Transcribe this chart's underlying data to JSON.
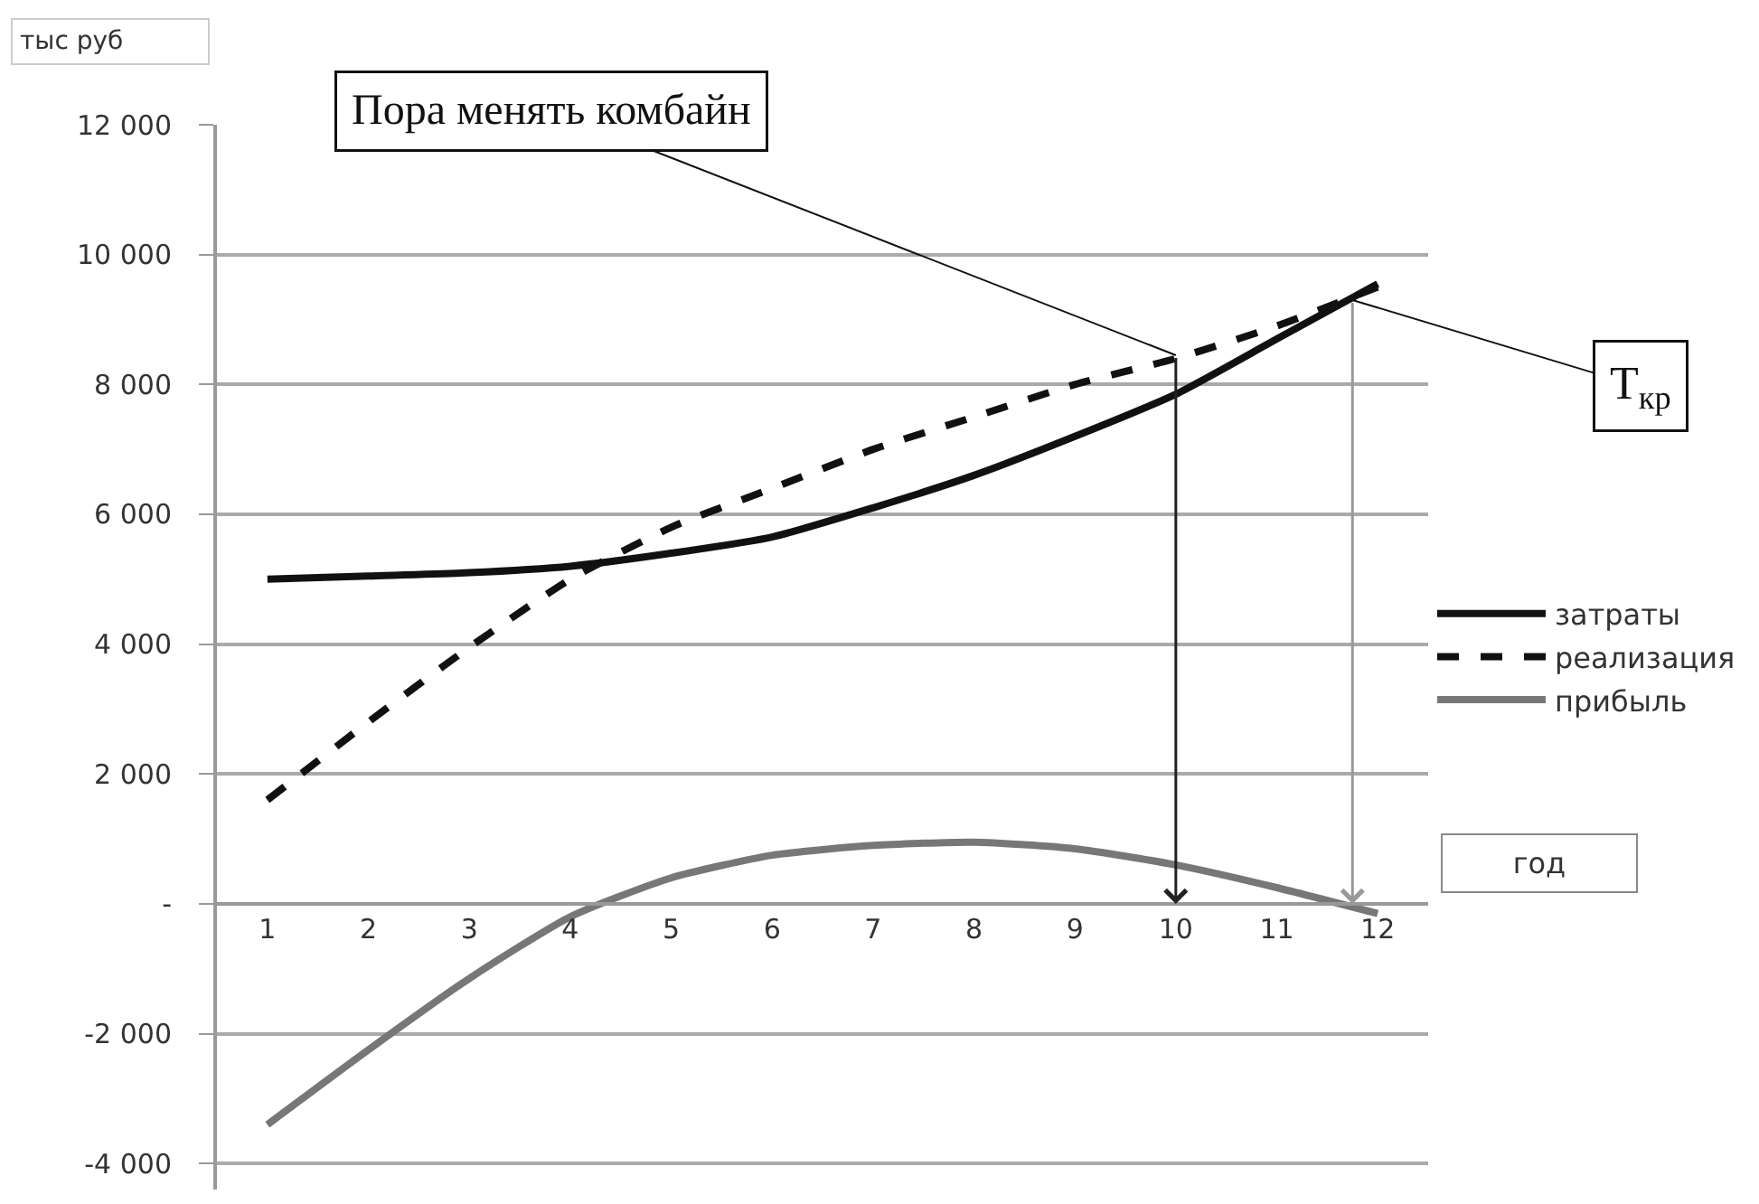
{
  "chart_data": {
    "type": "line",
    "x": [
      1,
      2,
      3,
      4,
      5,
      6,
      7,
      8,
      9,
      10,
      11,
      12
    ],
    "xlim": [
      0.5,
      12.5
    ],
    "xticks": [
      1,
      2,
      3,
      4,
      5,
      6,
      7,
      8,
      9,
      10,
      11,
      12
    ],
    "ylim": [
      -4400,
      12000
    ],
    "yticks": [
      {
        "value": -4000,
        "label": "-4 000"
      },
      {
        "value": -2000,
        "label": "-2 000"
      },
      {
        "value": 0,
        "label": "-"
      },
      {
        "value": 2000,
        "label": "2 000"
      },
      {
        "value": 4000,
        "label": "4 000"
      },
      {
        "value": 6000,
        "label": "6 000"
      },
      {
        "value": 8000,
        "label": "8 000"
      },
      {
        "value": 10000,
        "label": "10 000"
      },
      {
        "value": 12000,
        "label": "12 000"
      }
    ],
    "ylabel": "тыс руб",
    "xlabel": "год",
    "grid": "y",
    "legend": "right",
    "marker": "none",
    "series": [
      {
        "name": "затраты",
        "color": "#111111",
        "line_style": "solid",
        "values": [
          5000,
          5050,
          5100,
          5200,
          5400,
          5650,
          6100,
          6600,
          7200,
          7850,
          8700,
          9550
        ]
      },
      {
        "name": "реализация",
        "color": "#111111",
        "line_style": "dashed",
        "values": [
          1600,
          2800,
          3950,
          5000,
          5800,
          6400,
          7000,
          7500,
          8000,
          8400,
          8900,
          9500
        ]
      },
      {
        "name": "прибыль",
        "color": "#777777",
        "line_style": "solid",
        "values": [
          -3400,
          -2250,
          -1150,
          -200,
          400,
          750,
          900,
          950,
          850,
          600,
          250,
          -150
        ]
      }
    ],
    "ref_lines": [
      {
        "axis": "x",
        "value": 10,
        "color": "#222222"
      },
      {
        "axis": "x",
        "value": 11.75,
        "color": "#999999"
      }
    ],
    "annotations": [
      {
        "text": "Пора менять комбайн",
        "x": 10,
        "y": 8450
      },
      {
        "text": "T$_{кр}$",
        "x": 11.75,
        "y": 9300
      }
    ]
  }
}
